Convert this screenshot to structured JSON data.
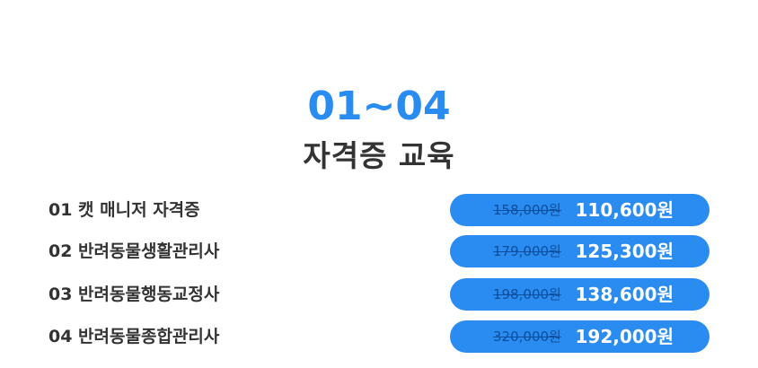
{
  "header": {
    "range": "01~04",
    "title": "자격증 교육"
  },
  "colors": {
    "accent": "#2a8cf0",
    "pill": "#2a8cf0",
    "text": "#333333",
    "strike": "#0f4e9c"
  },
  "courses": [
    {
      "name": "01 캣 매니저 자격증",
      "original_price": "158,000원",
      "sale_price": "110,600원"
    },
    {
      "name": "02 반려동물생활관리사",
      "original_price": "179,000원",
      "sale_price": "125,300원"
    },
    {
      "name": "03 반려동물행동교정사",
      "original_price": "198,000원",
      "sale_price": "138,600원"
    },
    {
      "name": "04 반려동물종합관리사",
      "original_price": "320,000원",
      "sale_price": "192,000원"
    }
  ]
}
